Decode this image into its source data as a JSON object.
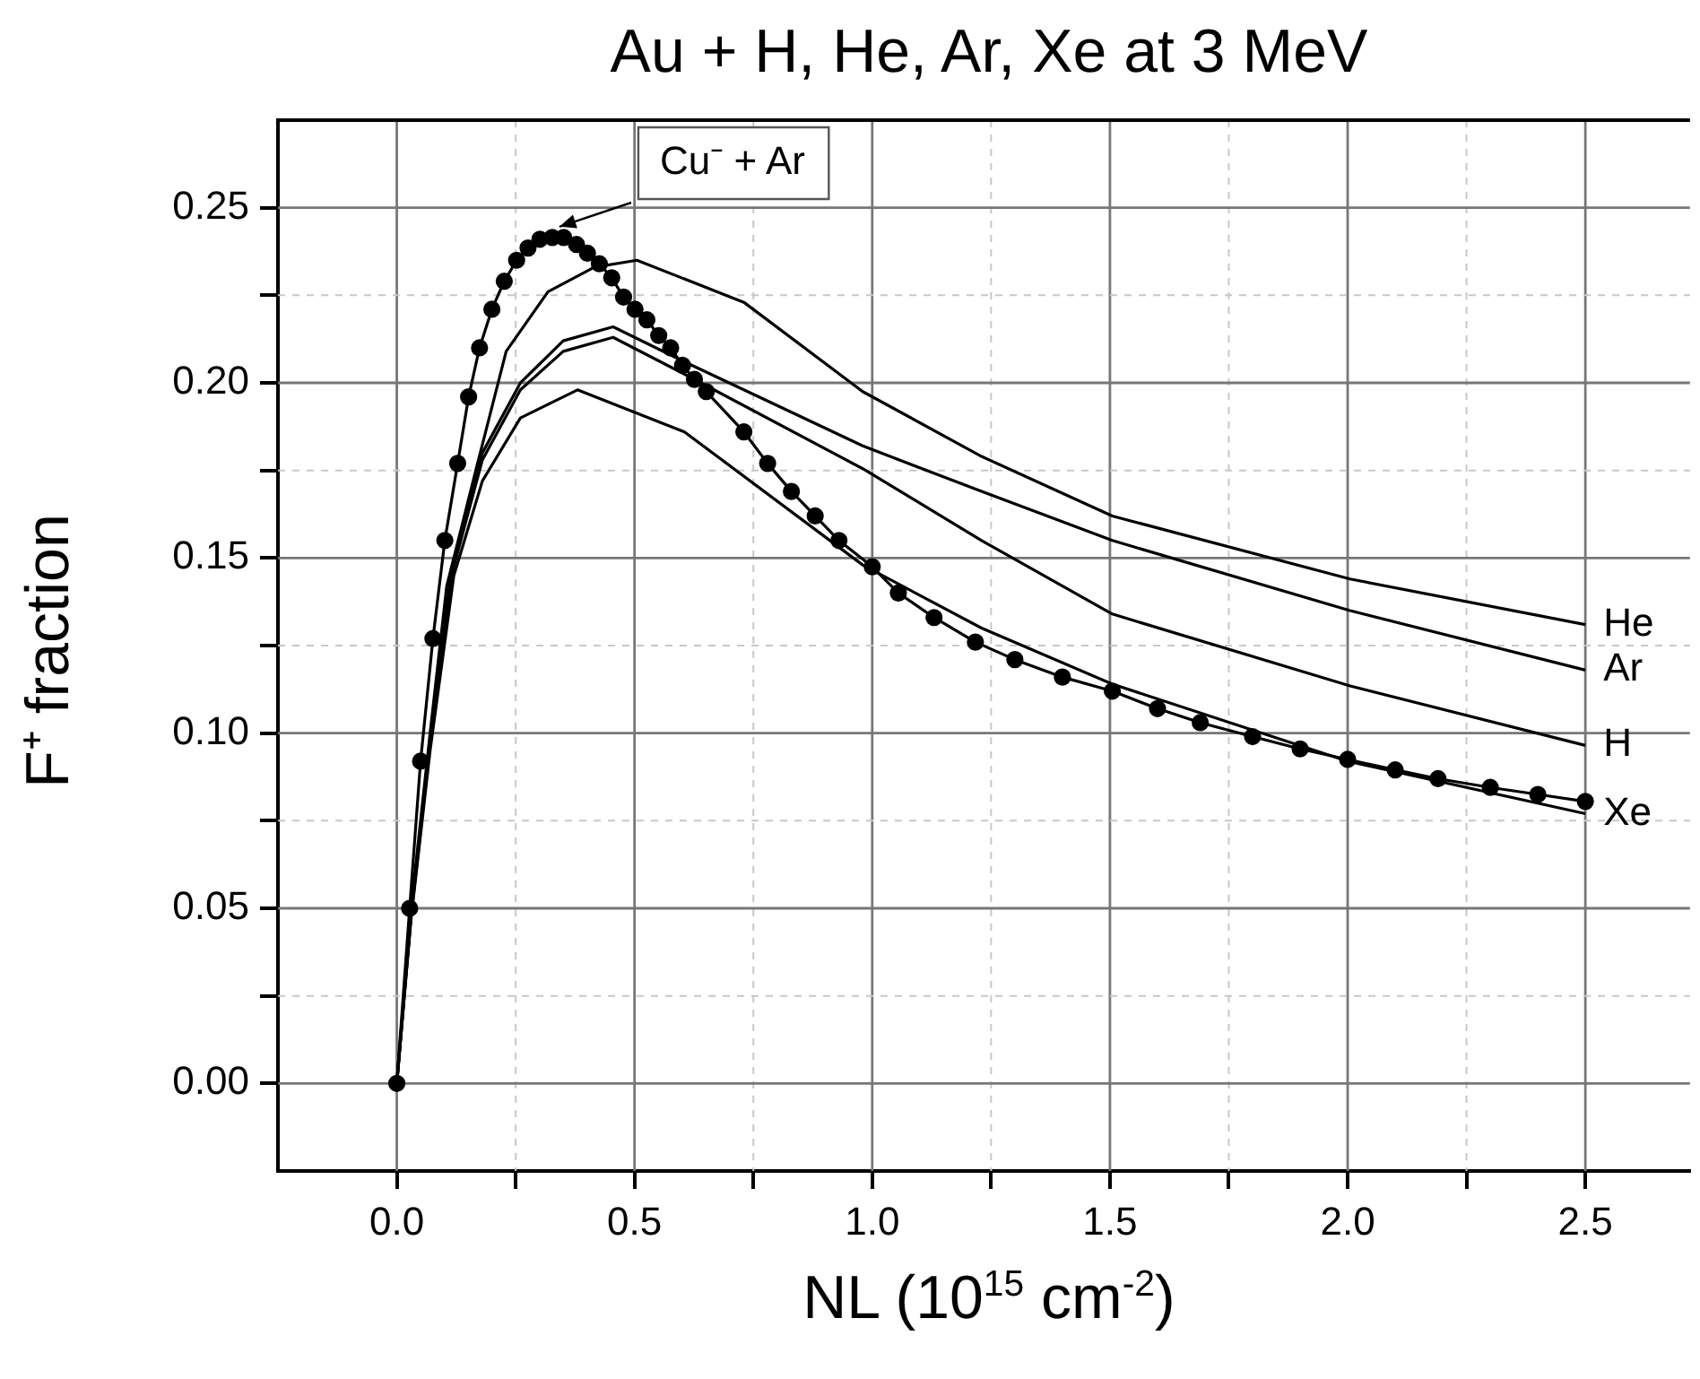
{
  "chart_data": {
    "type": "line",
    "title": "Au + H, He, Ar, Xe at 3 MeV",
    "xlabel": "NL (10$^{15}$ cm$^{-2}$)",
    "ylabel": "F⁺ fraction",
    "xlim": [
      -0.25,
      2.72
    ],
    "ylim": [
      -0.025,
      0.275
    ],
    "xticks": [
      {
        "value": 0,
        "label": "0.0"
      },
      {
        "value": 0.25,
        "label": null
      },
      0.5,
      {
        "value": 0.75,
        "label": null
      },
      {
        "value": 1,
        "label": "1.0"
      },
      {
        "value": 1.25,
        "label": null
      },
      1.5,
      {
        "value": 1.75,
        "label": null
      },
      {
        "value": 2,
        "label": "2.0"
      },
      {
        "value": 2.25,
        "label": null
      },
      2.5
    ],
    "yticks": [
      {
        "value": 0,
        "label": "0.00"
      },
      {
        "value": 0.025,
        "label": null
      },
      0.05,
      {
        "value": 0.075,
        "label": null
      },
      {
        "value": 0.1,
        "label": "0.10"
      },
      {
        "value": 0.125,
        "label": null
      },
      0.15,
      {
        "value": 0.175,
        "label": null
      },
      {
        "value": 0.2,
        "label": "0.20"
      },
      {
        "value": 0.225,
        "label": null
      },
      0.25
    ],
    "grid": true,
    "legend": false,
    "line_style": "solid",
    "series": [
      {
        "name": "Cu⁻ + Ar",
        "color": "#000000",
        "marker": "circle",
        "x": [
          0,
          0.027,
          0.05,
          0.076,
          0.101,
          0.128,
          0.151,
          0.174,
          0.2,
          0.226,
          0.252,
          0.276,
          0.301,
          0.327,
          0.351,
          0.378,
          0.401,
          0.426,
          0.452,
          0.477,
          0.501,
          0.526,
          0.551,
          0.576,
          0.601,
          0.626,
          0.651,
          0.73,
          0.78,
          0.83,
          0.88,
          0.93,
          1.0,
          1.055,
          1.13,
          1.217,
          1.3,
          1.4,
          1.505,
          1.6,
          1.69,
          1.8,
          1.9,
          2.0,
          2.1,
          2.19,
          2.3,
          2.4,
          2.5
        ],
        "values": [
          0,
          0.05,
          0.092,
          0.127,
          0.155,
          0.177,
          0.196,
          0.21,
          0.221,
          0.229,
          0.235,
          0.2385,
          0.241,
          0.2415,
          0.2415,
          0.2395,
          0.237,
          0.234,
          0.23,
          0.2245,
          0.221,
          0.218,
          0.2135,
          0.21,
          0.205,
          0.201,
          0.1975,
          0.186,
          0.177,
          0.169,
          0.162,
          0.155,
          0.1475,
          0.14,
          0.133,
          0.126,
          0.121,
          0.116,
          0.112,
          0.107,
          0.103,
          0.099,
          0.0955,
          0.0925,
          0.0895,
          0.087,
          0.0845,
          0.0825,
          0.0805
        ]
      },
      {
        "name": "He",
        "color": "#000000",
        "marker": "none",
        "x": [
          0,
          0.03,
          0.07,
          0.105,
          0.168,
          0.23,
          0.318,
          0.415,
          0.505,
          0.73,
          0.98,
          1.23,
          1.505,
          2.005,
          2.5
        ],
        "values": [
          0,
          0.05,
          0.1,
          0.142,
          0.176,
          0.209,
          0.226,
          0.233,
          0.235,
          0.223,
          0.1975,
          0.179,
          0.162,
          0.144,
          0.131
        ]
      },
      {
        "name": "Ar",
        "color": "#000000",
        "marker": "none",
        "x": [
          0,
          0.03,
          0.07,
          0.115,
          0.18,
          0.26,
          0.35,
          0.455,
          0.605,
          0.98,
          1.23,
          1.505,
          2.005,
          2.5
        ],
        "values": [
          0,
          0.048,
          0.097,
          0.147,
          0.18,
          0.2,
          0.212,
          0.216,
          0.206,
          0.182,
          0.169,
          0.155,
          0.135,
          0.118
        ]
      },
      {
        "name": "H",
        "color": "#000000",
        "marker": "none",
        "x": [
          0,
          0.03,
          0.07,
          0.115,
          0.18,
          0.26,
          0.35,
          0.455,
          0.605,
          0.98,
          1.23,
          1.505,
          2.005,
          2.5
        ],
        "values": [
          0,
          0.048,
          0.097,
          0.145,
          0.178,
          0.198,
          0.209,
          0.213,
          0.2025,
          0.1755,
          0.155,
          0.134,
          0.1135,
          0.0965
        ]
      },
      {
        "name": "Xe",
        "color": "#000000",
        "marker": "none",
        "x": [
          0,
          0.03,
          0.07,
          0.12,
          0.18,
          0.26,
          0.38,
          0.605,
          0.98,
          1.23,
          1.505,
          2.0,
          2.5
        ],
        "values": [
          0,
          0.047,
          0.095,
          0.145,
          0.172,
          0.19,
          0.198,
          0.186,
          0.148,
          0.13,
          0.114,
          0.092,
          0.077
        ]
      }
    ]
  }
}
